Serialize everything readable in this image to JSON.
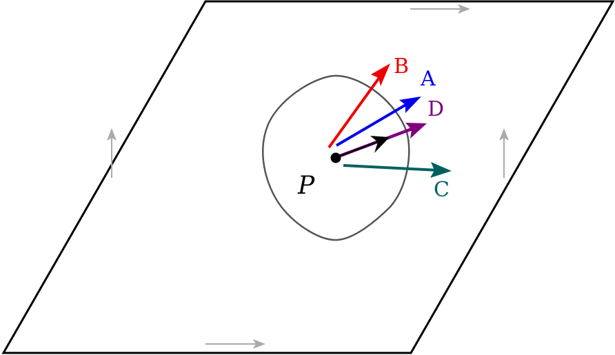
{
  "diagram": {
    "point_label": "P",
    "vectors": [
      {
        "key": "A",
        "label": "A",
        "color": "#0000ee"
      },
      {
        "key": "B",
        "label": "B",
        "color": "#ee0000"
      },
      {
        "key": "C",
        "label": "C",
        "color": "#006060"
      },
      {
        "key": "D",
        "label": "D",
        "color": "#800080"
      }
    ],
    "colors": {
      "outline": "#000000",
      "neighborhood": "#555555",
      "identification_arrows": "#aaaaaa",
      "tangent": "#000000"
    }
  }
}
